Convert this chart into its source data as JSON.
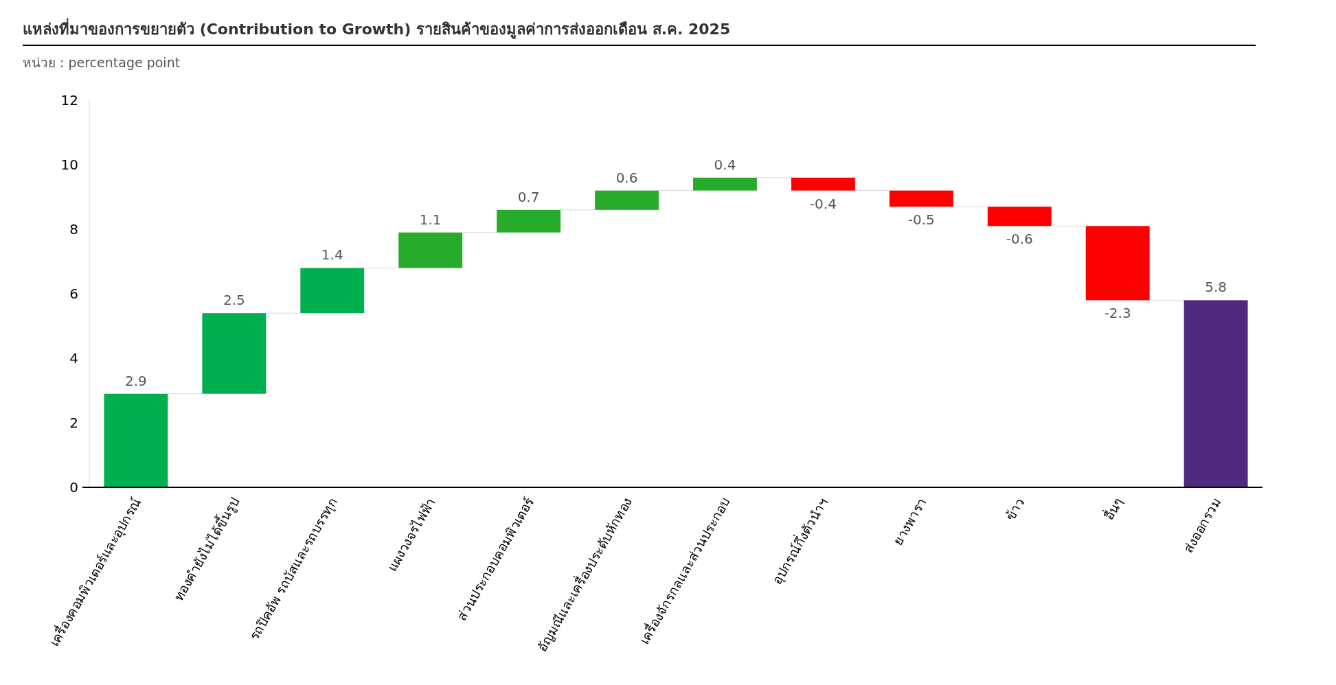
{
  "chart_data": {
    "type": "bar",
    "title": "แหล่งที่มาของการขยายตัว (Contribution to Growth) รายสินค้าของมูลค่าการส่งออกเดือน ส.ค. 2025",
    "subtitle": "หน่วย : percentage point",
    "categories": [
      "เครื่องคอมพิวเตอร์และอุปกรณ์",
      "ทองคำยังไม่ได้ขึ้นรูป",
      "รถปิคอัพ  รถบัสและรถบรรทุก",
      "แผงวงจรไฟฟ้า",
      "ส่วนประกอบคอมพิวเตอร์",
      "อัญมณีและเครื่องประดับหักทอง",
      "เครื่องจักรกลและส่วนประกอบ",
      "อุปกรณ์กึ่งตัวนำฯ",
      "ยางพารา",
      "ข้าว",
      "อื่นๆ",
      "ส่งออกรวม"
    ],
    "values": [
      2.9,
      2.5,
      1.4,
      1.1,
      0.7,
      0.6,
      0.4,
      -0.4,
      -0.5,
      -0.6,
      -2.3,
      5.8
    ],
    "base": [
      0,
      2.9,
      5.4,
      6.8,
      7.9,
      8.6,
      9.2,
      9.6,
      9.2,
      8.7,
      8.1,
      0
    ],
    "colors": [
      "#00b050",
      "#00b050",
      "#00b050",
      "#27ab2b",
      "#27ab2b",
      "#27ab2b",
      "#27ab2b",
      "#ff0000",
      "#ff0000",
      "#ff0000",
      "#ff0000",
      "#4f2a7f"
    ],
    "ylim": [
      0,
      12
    ],
    "yticks": [
      0,
      2,
      4,
      6,
      8,
      10,
      12
    ],
    "data_labels": true
  }
}
